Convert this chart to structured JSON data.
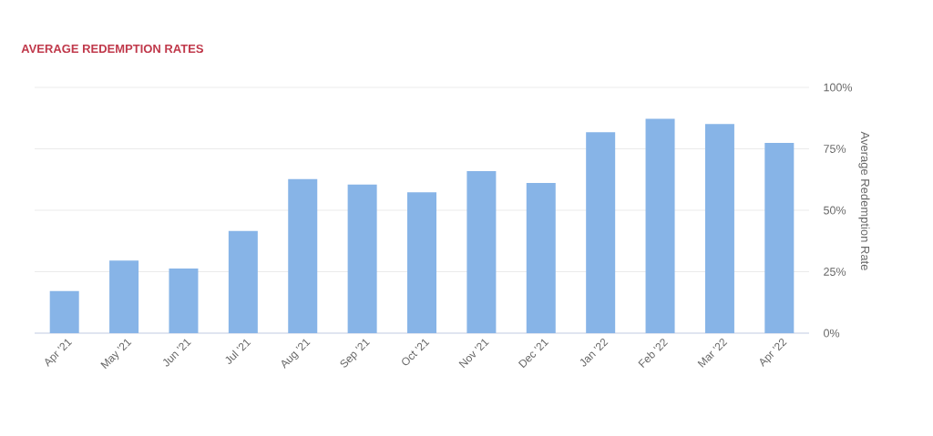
{
  "chart_data": {
    "type": "bar",
    "title": "AVERAGE REDEMPTION RATES",
    "ylabel": "Average Redemption Rate",
    "categories": [
      "Apr '21",
      "May '21",
      "Jun '21",
      "Jul '21",
      "Aug '21",
      "Sep '21",
      "Oct '21",
      "Nov '21",
      "Dec '21",
      "Jan '22",
      "Feb '22",
      "Mar '22",
      "Apr '22"
    ],
    "values": [
      17.1,
      29.5,
      26.3,
      41.6,
      62.7,
      60.5,
      57.3,
      65.9,
      61.1,
      81.8,
      87.2,
      85.1,
      77.4
    ],
    "color": "#87b4e7",
    "ylim": [
      0,
      100
    ],
    "yticks": [
      {
        "value": 0,
        "label": "0%"
      },
      {
        "value": 25,
        "label": "25%"
      },
      {
        "value": 50,
        "label": "50%"
      },
      {
        "value": 75,
        "label": "75%"
      },
      {
        "value": 100,
        "label": "100%"
      }
    ],
    "grid": "y"
  }
}
